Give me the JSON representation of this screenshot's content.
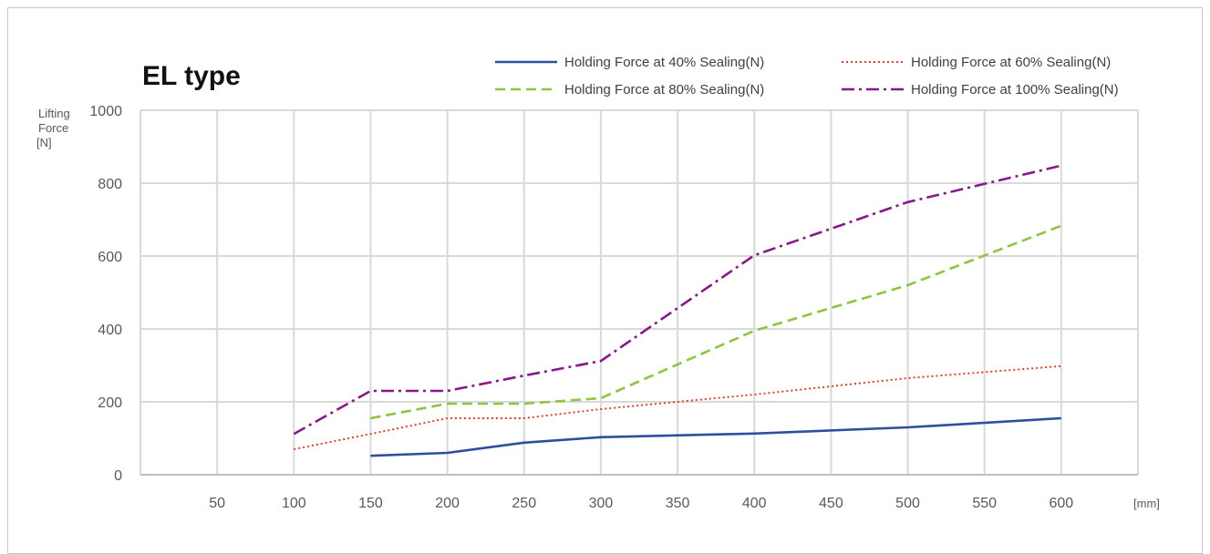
{
  "chart_data": {
    "type": "line",
    "title": "EL type",
    "ylabel": [
      "Lifting",
      "Force",
      "[N]"
    ],
    "xunit": "[mm]",
    "xlim": [
      0,
      650
    ],
    "ylim": [
      0,
      1000
    ],
    "xticks": [
      50,
      100,
      150,
      200,
      250,
      300,
      350,
      400,
      450,
      500,
      550,
      600
    ],
    "yticks": [
      0,
      200,
      400,
      600,
      800,
      1000
    ],
    "grid": true,
    "legend_position": "top-right",
    "series": [
      {
        "name": "Holding Force at 40% Sealing(N)",
        "color": "#2e4f9e",
        "dash": "solid",
        "points": [
          [
            150,
            52
          ],
          [
            200,
            60
          ],
          [
            250,
            88
          ],
          [
            300,
            103
          ],
          [
            400,
            113
          ],
          [
            500,
            130
          ],
          [
            600,
            155
          ]
        ]
      },
      {
        "name": "Holding Force at 60% Sealing(N)",
        "color": "#ef3b2c",
        "dash": "dotted",
        "points": [
          [
            100,
            70
          ],
          [
            150,
            112
          ],
          [
            200,
            155
          ],
          [
            250,
            155
          ],
          [
            300,
            180
          ],
          [
            350,
            200
          ],
          [
            400,
            220
          ],
          [
            500,
            265
          ],
          [
            600,
            298
          ]
        ]
      },
      {
        "name": "Holding Force at 80% Sealing(N)",
        "color": "#8cc63f",
        "dash": "dashed",
        "points": [
          [
            150,
            155
          ],
          [
            200,
            195
          ],
          [
            250,
            195
          ],
          [
            300,
            210
          ],
          [
            400,
            395
          ],
          [
            500,
            520
          ],
          [
            600,
            683
          ]
        ]
      },
      {
        "name": "Holding Force at 100% Sealing(N)",
        "color": "#8b168b",
        "dash": "dashdot",
        "points": [
          [
            100,
            112
          ],
          [
            150,
            230
          ],
          [
            200,
            230
          ],
          [
            250,
            272
          ],
          [
            300,
            312
          ],
          [
            400,
            602
          ],
          [
            500,
            748
          ],
          [
            600,
            848
          ]
        ]
      }
    ]
  }
}
